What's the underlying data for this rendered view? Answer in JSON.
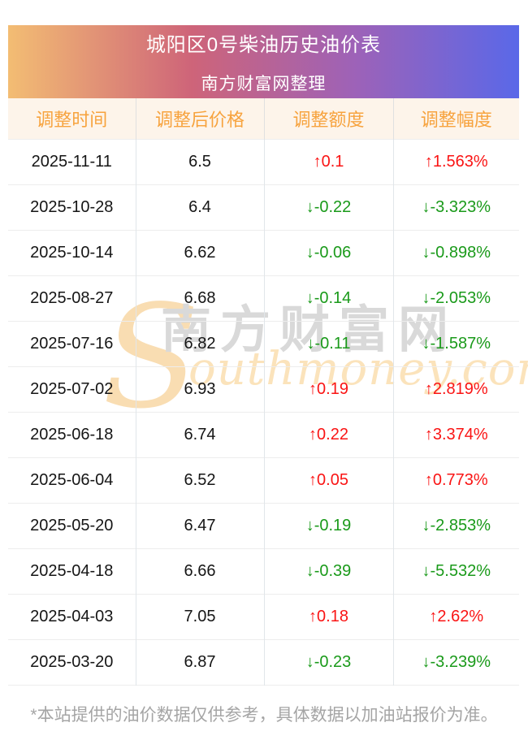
{
  "page": {
    "title": "城阳区0号柴油历史油价表",
    "subtitle": "南方财富网整理",
    "footer_note": "*本站提供的油价数据仅供参考，具体数据以加油站报价为准。"
  },
  "watermark": {
    "initial": "S",
    "brand_cn": "南方财富网",
    "domain_rest": "outhmoney.com"
  },
  "colors": {
    "up": "#fa1414",
    "down": "#1a9a1a",
    "header_text": "#f7a33e",
    "header_bg": "#fdf4ea",
    "gradient_start": "#f3bd73",
    "gradient_mid1": "#ce6479",
    "gradient_mid2": "#9d62b8",
    "gradient_end": "#5a68e8"
  },
  "table": {
    "columns": [
      "调整时间",
      "调整后价格",
      "调整额度",
      "调整幅度"
    ],
    "rows": [
      {
        "date": "2025-11-11",
        "price": "6.5",
        "change": "↑0.1",
        "pct": "↑1.563%",
        "direction": "up"
      },
      {
        "date": "2025-10-28",
        "price": "6.4",
        "change": "↓-0.22",
        "pct": "↓-3.323%",
        "direction": "down"
      },
      {
        "date": "2025-10-14",
        "price": "6.62",
        "change": "↓-0.06",
        "pct": "↓-0.898%",
        "direction": "down"
      },
      {
        "date": "2025-08-27",
        "price": "6.68",
        "change": "↓-0.14",
        "pct": "↓-2.053%",
        "direction": "down"
      },
      {
        "date": "2025-07-16",
        "price": "6.82",
        "change": "↓-0.11",
        "pct": "↓-1.587%",
        "direction": "down"
      },
      {
        "date": "2025-07-02",
        "price": "6.93",
        "change": "↑0.19",
        "pct": "↑2.819%",
        "direction": "up"
      },
      {
        "date": "2025-06-18",
        "price": "6.74",
        "change": "↑0.22",
        "pct": "↑3.374%",
        "direction": "up"
      },
      {
        "date": "2025-06-04",
        "price": "6.52",
        "change": "↑0.05",
        "pct": "↑0.773%",
        "direction": "up"
      },
      {
        "date": "2025-05-20",
        "price": "6.47",
        "change": "↓-0.19",
        "pct": "↓-2.853%",
        "direction": "down"
      },
      {
        "date": "2025-04-18",
        "price": "6.66",
        "change": "↓-0.39",
        "pct": "↓-5.532%",
        "direction": "down"
      },
      {
        "date": "2025-04-03",
        "price": "7.05",
        "change": "↑0.18",
        "pct": "↑2.62%",
        "direction": "up"
      },
      {
        "date": "2025-03-20",
        "price": "6.87",
        "change": "↓-0.23",
        "pct": "↓-3.239%",
        "direction": "down"
      }
    ]
  },
  "chart_data": {
    "type": "table",
    "title": "城阳区0号柴油历史油价表",
    "subtitle": "南方财富网整理",
    "columns": [
      "调整时间",
      "调整后价格",
      "调整额度",
      "调整幅度"
    ],
    "rows": [
      [
        "2025-11-11",
        6.5,
        0.1,
        "1.563%"
      ],
      [
        "2025-10-28",
        6.4,
        -0.22,
        "-3.323%"
      ],
      [
        "2025-10-14",
        6.62,
        -0.06,
        "-0.898%"
      ],
      [
        "2025-08-27",
        6.68,
        -0.14,
        "-2.053%"
      ],
      [
        "2025-07-16",
        6.82,
        -0.11,
        "-1.587%"
      ],
      [
        "2025-07-02",
        6.93,
        0.19,
        "2.819%"
      ],
      [
        "2025-06-18",
        6.74,
        0.22,
        "3.374%"
      ],
      [
        "2025-06-04",
        6.52,
        0.05,
        "0.773%"
      ],
      [
        "2025-05-20",
        6.47,
        -0.19,
        "-2.853%"
      ],
      [
        "2025-04-18",
        6.66,
        -0.39,
        "-5.532%"
      ],
      [
        "2025-04-03",
        7.05,
        0.18,
        "2.62%"
      ],
      [
        "2025-03-20",
        6.87,
        -0.23,
        "-3.239%"
      ]
    ],
    "notes": "red with ↑ = price increase, green with ↓ = price decrease"
  }
}
